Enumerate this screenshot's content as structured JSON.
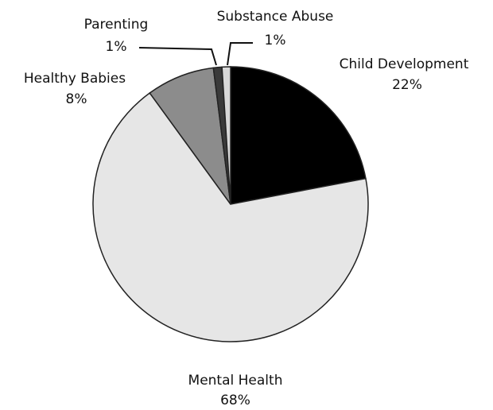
{
  "chart_data": {
    "type": "pie",
    "title": "",
    "slices": [
      {
        "label": "Child Development",
        "value": 22,
        "value_label": "22%",
        "color": "#000000"
      },
      {
        "label": "Mental Health",
        "value": 68,
        "value_label": "68%",
        "color": "#e6e6e6"
      },
      {
        "label": "Healthy Babies",
        "value": 8,
        "value_label": "8%",
        "color": "#8c8c8c"
      },
      {
        "label": "Parenting",
        "value": 1,
        "value_label": "1%",
        "color": "#3a3a3a"
      },
      {
        "label": "Substance Abuse",
        "value": 1,
        "value_label": "1%",
        "color": "#d8d8d8"
      }
    ],
    "start": "top",
    "direction": "clockwise",
    "legend": "none"
  }
}
